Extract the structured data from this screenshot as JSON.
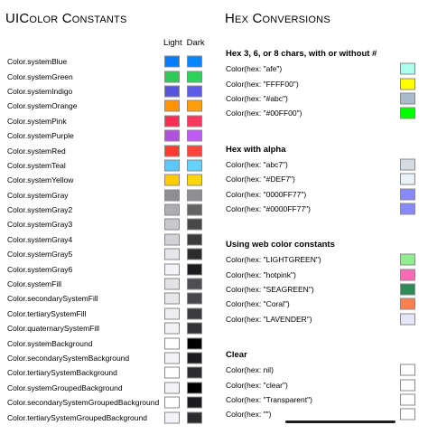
{
  "titles": {
    "left": "UIColor Constants",
    "right": "Hex Conversions"
  },
  "mode_header": {
    "light": "Light",
    "dark": "Dark"
  },
  "system_colors": [
    {
      "label": "Color.systemBlue",
      "light": "#0a7aff",
      "dark": "#0a84ff"
    },
    {
      "label": "Color.systemGreen",
      "light": "#34c759",
      "dark": "#30d158"
    },
    {
      "label": "Color.systemIndigo",
      "light": "#5856d6",
      "dark": "#5e5ce6"
    },
    {
      "label": "Color.systemOrange",
      "light": "#ff9500",
      "dark": "#ff9f0a"
    },
    {
      "label": "Color.systemPink",
      "light": "#ff2d55",
      "dark": "#ff375f"
    },
    {
      "label": "Color.systemPurple",
      "light": "#af52de",
      "dark": "#bf5af2"
    },
    {
      "label": "Color.systemRed",
      "light": "#ff3b30",
      "dark": "#ff453a"
    },
    {
      "label": "Color.systemTeal",
      "light": "#5ac8fa",
      "dark": "#64d2ff"
    },
    {
      "label": "Color.systemYellow",
      "light": "#ffcc00",
      "dark": "#ffd60a"
    },
    {
      "label": "Color.systemGray",
      "light": "#8e8e93",
      "dark": "#8e8e93"
    },
    {
      "label": "Color.systemGray2",
      "light": "#aeaeb2",
      "dark": "#636366"
    },
    {
      "label": "Color.systemGray3",
      "light": "#c7c7cc",
      "dark": "#48484a"
    },
    {
      "label": "Color.systemGray4",
      "light": "#d1d1d6",
      "dark": "#3a3a3c"
    },
    {
      "label": "Color.systemGray5",
      "light": "#e5e5ea",
      "dark": "#2c2c2e"
    },
    {
      "label": "Color.systemGray6",
      "light": "#f2f2f7",
      "dark": "#1c1c1e"
    },
    {
      "label": "Color.systemFill",
      "light": "#e3e3e6",
      "dark": "#4d4d52"
    },
    {
      "label": "Color.secondarySystemFill",
      "light": "#e7e7ea",
      "dark": "#47474c"
    },
    {
      "label": "Color.tertiarySystemFill",
      "light": "#eeeef0",
      "dark": "#3b3b3f"
    },
    {
      "label": "Color.quaternarySystemFill",
      "light": "#f2f2f4",
      "dark": "#333336"
    },
    {
      "label": "Color.systemBackground",
      "light": "#ffffff",
      "dark": "#000000"
    },
    {
      "label": "Color.secondarySystemBackground",
      "light": "#f2f2f7",
      "dark": "#1c1c1e"
    },
    {
      "label": "Color.tertiarySystemBackground",
      "light": "#ffffff",
      "dark": "#2c2c2e"
    },
    {
      "label": "Color.systemGroupedBackground",
      "light": "#f2f2f7",
      "dark": "#000000"
    },
    {
      "label": "Color.secondarySystemGroupedBackground",
      "light": "#ffffff",
      "dark": "#1c1c1e"
    },
    {
      "label": "Color.tertiarySystemGroupedBackground",
      "light": "#f2f2f7",
      "dark": "#2c2c2e"
    }
  ],
  "hex_sections": [
    {
      "heading": "Hex 3, 6, or 8 chars, with or without #",
      "rows": [
        {
          "label": "Color(hex: \"afe\")",
          "color": "#aaffee"
        },
        {
          "label": "Color(hex: \"FFFF00\")",
          "color": "#ffff00"
        },
        {
          "label": "Color(hex: \"#abc\")",
          "color": "#aabbcc"
        },
        {
          "label": "Color(hex: \"#00FF00\")",
          "color": "#00ff00"
        }
      ]
    },
    {
      "heading": "Hex with alpha",
      "rows": [
        {
          "label": "Color(hex: \"abc7\")",
          "color": "#d4dbe2"
        },
        {
          "label": "Color(hex: \"#DEF7\")",
          "color": "#eaf2f9"
        },
        {
          "label": "Color(hex: \"0000FF77\")",
          "color": "#8888ff"
        },
        {
          "label": "Color(hex: \"#0000FF77\")",
          "color": "#8888ff"
        }
      ]
    },
    {
      "heading": "Using web color constants",
      "rows": [
        {
          "label": "Color(hex: \"LIGHTGREEN\")",
          "color": "#90ee90"
        },
        {
          "label": "Color(hex: \"hotpink\")",
          "color": "#ff69b4"
        },
        {
          "label": "Color(hex: \"SEAGREEN\")",
          "color": "#2e8b57"
        },
        {
          "label": "Color(hex: \"Coral\")",
          "color": "#ff7f50"
        },
        {
          "label": "Color(hex: \"LAVENDER\")",
          "color": "#e6e6fa"
        }
      ]
    },
    {
      "heading": "Clear",
      "rows": [
        {
          "label": "Color(hex: nil)",
          "color": "#ffffff"
        },
        {
          "label": "Color(hex: \"clear\")",
          "color": "#ffffff"
        },
        {
          "label": "Color(hex: \"Transparent\")",
          "color": "#ffffff"
        },
        {
          "label": "Color(hex: \"\")",
          "color": "#ffffff"
        }
      ]
    }
  ]
}
